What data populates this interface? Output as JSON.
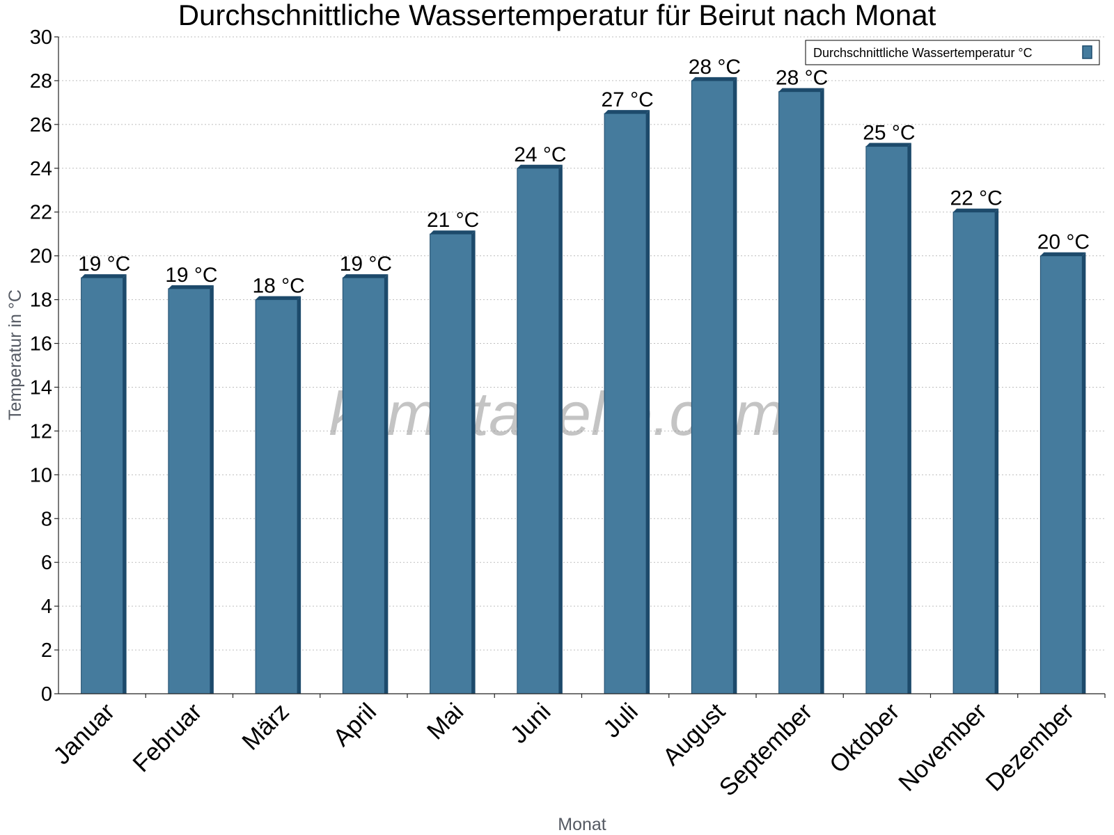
{
  "chart_data": {
    "type": "bar",
    "title": "Durchschnittliche Wassertemperatur für Beirut nach Monat",
    "xlabel": "Monat",
    "ylabel": "Temperatur in °C",
    "ylim": [
      0,
      30
    ],
    "yticks": [
      0,
      2,
      4,
      6,
      8,
      10,
      12,
      14,
      16,
      18,
      20,
      22,
      24,
      26,
      28,
      30
    ],
    "grid": true,
    "legend_position": "top-right",
    "categories": [
      "Januar",
      "Februar",
      "März",
      "April",
      "Mai",
      "Juni",
      "Juli",
      "August",
      "September",
      "Oktober",
      "November",
      "Dezember"
    ],
    "series": [
      {
        "name": "Durchschnittliche Wassertemperatur °C",
        "values": [
          19.0,
          18.5,
          18.0,
          19.0,
          21.0,
          24.0,
          26.5,
          28.0,
          27.5,
          25.0,
          22.0,
          20.0
        ],
        "labels": [
          "19 °C",
          "19 °C",
          "18 °C",
          "19 °C",
          "21 °C",
          "24 °C",
          "27 °C",
          "28 °C",
          "28 °C",
          "25 °C",
          "22 °C",
          "20 °C"
        ],
        "color": "#457b9d",
        "edge_color": "#1d4a6b"
      }
    ],
    "watermark": "klimatabelle.com"
  }
}
